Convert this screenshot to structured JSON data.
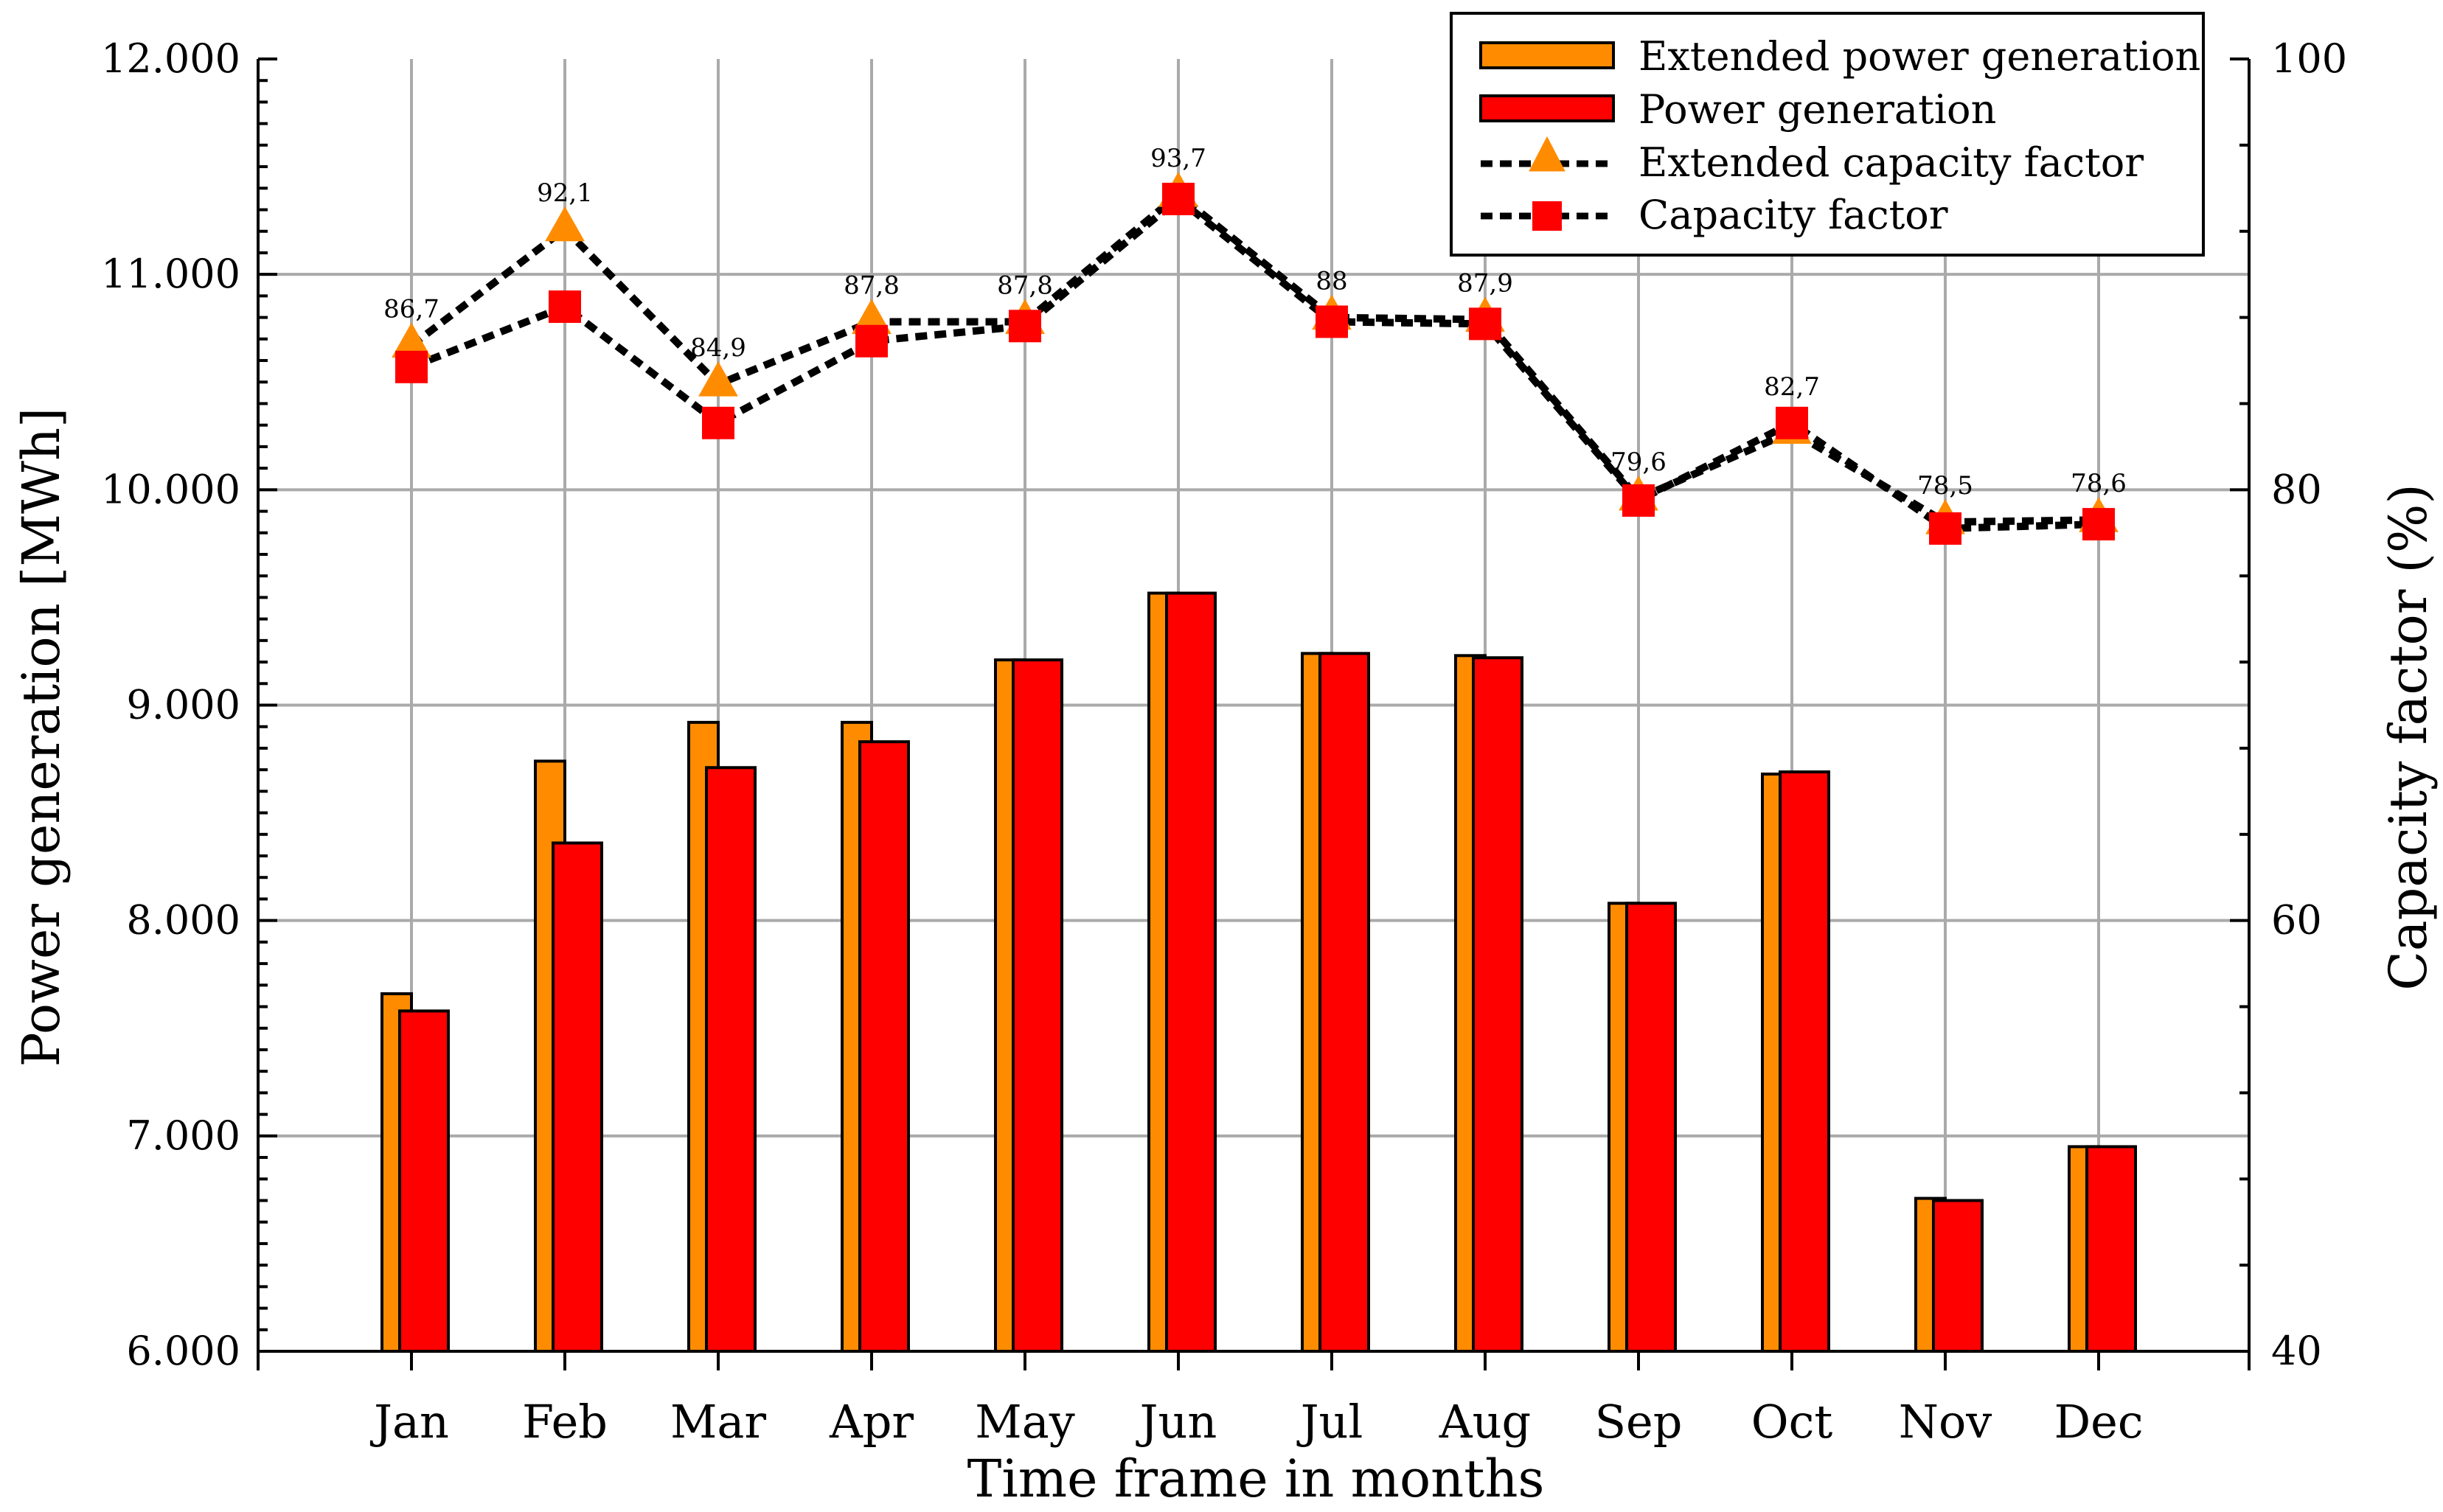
{
  "chart_data": {
    "type": "bar",
    "categories": [
      "Jan",
      "Feb",
      "Mar",
      "Apr",
      "May",
      "Jun",
      "Jul",
      "Aug",
      "Sep",
      "Oct",
      "Nov",
      "Dec"
    ],
    "series": [
      {
        "name": "Extended power generation",
        "axis": "left",
        "kind": "bar",
        "color": "#ff8c00",
        "values": [
          7660,
          8740,
          8920,
          8920,
          9210,
          9520,
          9240,
          9230,
          8080,
          8680,
          6710,
          6950
        ]
      },
      {
        "name": "Power generation",
        "axis": "left",
        "kind": "bar",
        "color": "#ff0000",
        "values": [
          7580,
          8360,
          8710,
          8830,
          9210,
          9520,
          9240,
          9220,
          8080,
          8690,
          6700,
          6950
        ]
      },
      {
        "name": "Extended capacity factor",
        "axis": "right",
        "kind": "line",
        "marker": "triangle",
        "color": "#ff8c00",
        "values": [
          86.7,
          92.1,
          84.9,
          87.8,
          87.8,
          93.7,
          88,
          87.9,
          79.6,
          82.7,
          78.5,
          78.6
        ],
        "labels": [
          "86,7",
          "92,1",
          "84,9",
          "87,8",
          "87,8",
          "93,7",
          "88",
          "87,9",
          "79,6",
          "82,7",
          "78,5",
          "78,6"
        ]
      },
      {
        "name": "Capacity factor",
        "axis": "right",
        "kind": "line",
        "marker": "square",
        "color": "#ff0000",
        "values": [
          85.7,
          88.5,
          83.1,
          86.9,
          87.6,
          93.5,
          87.8,
          87.7,
          79.5,
          83.1,
          78.2,
          78.4
        ]
      }
    ],
    "xlabel": "Time frame in months",
    "ylabel": "Power generation [MWh]",
    "y2label": "Capacity factor (%)",
    "ylim": [
      6000,
      12000
    ],
    "y2lim": [
      40,
      100
    ],
    "yticks": [
      "6.000",
      "7.000",
      "8.000",
      "9.000",
      "10.000",
      "11.000",
      "12.000"
    ],
    "y2ticks": [
      "40",
      "60",
      "80",
      "100"
    ],
    "grid": true,
    "legend_position": "top-right"
  }
}
